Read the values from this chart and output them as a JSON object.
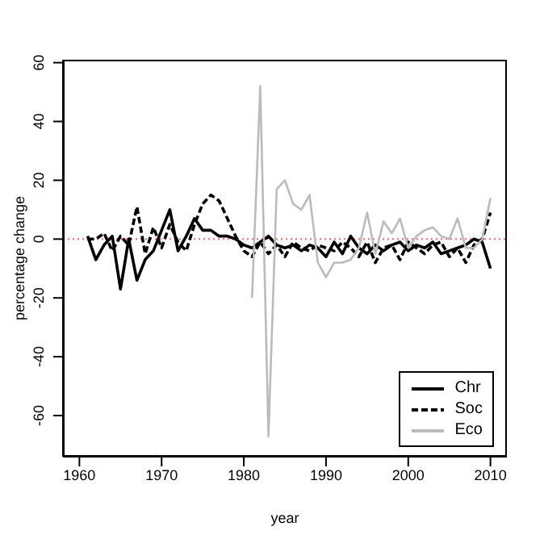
{
  "chart_data": {
    "type": "line",
    "xlabel": "year",
    "ylabel": "percentage change",
    "x": [
      1961,
      1962,
      1963,
      1964,
      1965,
      1966,
      1967,
      1968,
      1969,
      1970,
      1971,
      1972,
      1973,
      1974,
      1975,
      1976,
      1977,
      1978,
      1979,
      1980,
      1981,
      1982,
      1983,
      1984,
      1985,
      1986,
      1987,
      1988,
      1989,
      1990,
      1991,
      1992,
      1993,
      1994,
      1995,
      1996,
      1997,
      1998,
      1999,
      2000,
      2001,
      2002,
      2003,
      2004,
      2005,
      2006,
      2007,
      2008,
      2009,
      2010
    ],
    "series": [
      {
        "name": "Chr",
        "color": "#000000",
        "line_style": "solid",
        "values": [
          1,
          -7,
          -2,
          1,
          -17,
          0,
          -14,
          -7,
          -4,
          3,
          10,
          -4,
          1,
          7,
          3,
          3,
          1,
          1,
          0,
          -2,
          -3,
          -1,
          1,
          -2,
          -3,
          -2,
          -4,
          -2,
          -3,
          -6,
          -1,
          -5,
          1,
          -3,
          -5,
          -2,
          -4,
          -2,
          -1,
          -4,
          -2,
          -3,
          -1,
          -5,
          -4,
          -3,
          -2,
          0,
          -1,
          -10
        ]
      },
      {
        "name": "Soc",
        "color": "#000000",
        "line_style": "dashed",
        "values": [
          0,
          0,
          2,
          -4,
          1,
          -2,
          11,
          -5,
          4,
          -3,
          5,
          -1,
          -4,
          5,
          12,
          15,
          13,
          7,
          1,
          -4,
          -6,
          -1,
          -5,
          -2,
          -6,
          -1,
          -3,
          -4,
          -2,
          -3,
          -4,
          -1,
          -3,
          -6,
          -1,
          -8,
          -3,
          -2,
          -7,
          -1,
          -3,
          -5,
          -2,
          -1,
          -6,
          -3,
          -8,
          -2,
          0,
          9
        ]
      },
      {
        "name": "Eco",
        "color": "#bbbbbb",
        "line_style": "solid",
        "values": [
          null,
          null,
          null,
          null,
          null,
          null,
          null,
          null,
          null,
          null,
          null,
          null,
          null,
          null,
          null,
          null,
          null,
          null,
          null,
          null,
          -20,
          52,
          -67,
          17,
          20,
          12,
          10,
          15,
          -8,
          -13,
          -8,
          -8,
          -7,
          -3,
          9,
          -5,
          6,
          2,
          7,
          -3,
          1,
          3,
          4,
          1,
          0,
          7,
          -3,
          -3,
          0,
          14
        ]
      }
    ],
    "xlim": [
      1958,
      2012
    ],
    "xticks": [
      1960,
      1970,
      1980,
      1990,
      2000,
      2010
    ],
    "ylim": [
      -74,
      61
    ],
    "yticks": [
      -60,
      -40,
      -20,
      0,
      20,
      40,
      60
    ],
    "ref_lines": [
      {
        "axis": "y",
        "value": 0,
        "color": "#ff6666",
        "line_style": "dotted"
      }
    ],
    "grid": false,
    "legend": "bottom right",
    "marker": "none"
  }
}
